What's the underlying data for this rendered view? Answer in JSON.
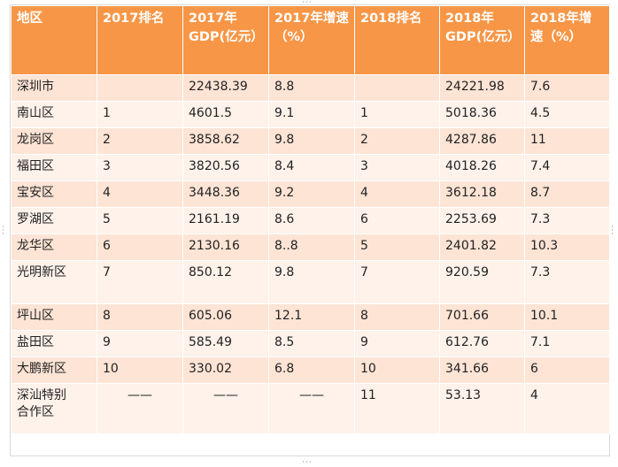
{
  "table": {
    "headers": [
      "地区",
      "2017排名",
      "2017年GDP(亿元）",
      "2017年增速（%）",
      "2018排名",
      "2018年GDP(亿元）",
      "2018年增速（%）"
    ],
    "rows": [
      [
        "深圳市",
        "",
        "22438.39",
        "8.8",
        "",
        "24221.98",
        "7.6"
      ],
      [
        "南山区",
        "1",
        "4601.5",
        "9.1",
        "1",
        "5018.36",
        "4.5"
      ],
      [
        "龙岗区",
        "2",
        "3858.62",
        "9.8",
        "2",
        "4287.86",
        "11"
      ],
      [
        "福田区",
        "3",
        "3820.56",
        "8.4",
        "3",
        "4018.26",
        "7.4"
      ],
      [
        "宝安区",
        "4",
        "3448.36",
        "9.2",
        "4",
        "3612.18",
        "8.7"
      ],
      [
        "罗湖区",
        "5",
        "2161.19",
        "8.6",
        "6",
        "2253.69",
        "7.3"
      ],
      [
        "龙华区",
        "6",
        "2130.16",
        "8..8",
        "5",
        "2401.82",
        "10.3"
      ],
      [
        "光明新区",
        "7",
        "850.12",
        "9.8",
        "7",
        "920.59",
        "7.3"
      ],
      [
        "坪山区",
        "8",
        "605.06",
        "12.1",
        "8",
        "701.66",
        "10.1"
      ],
      [
        "盐田区",
        "9",
        "585.49",
        "8.5",
        "9",
        "612.76",
        "7.1"
      ],
      [
        "大鹏新区",
        "10",
        "330.02",
        "6.8",
        "10",
        "341.66",
        "6"
      ],
      [
        "深汕特别合作区",
        "——",
        "——",
        "——",
        "11",
        "53.13",
        "4"
      ]
    ]
  },
  "colors": {
    "header_bg": "#f79646",
    "row_odd": "#fde4d5",
    "row_even": "#fef2ea"
  },
  "resize_handle_icon": "dotted-grip-icon"
}
